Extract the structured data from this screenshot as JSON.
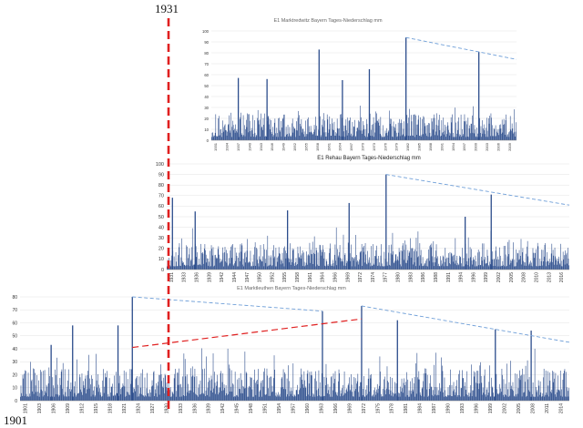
{
  "labels": {
    "year_top": "1931",
    "year_bottom": "1901"
  },
  "colors": {
    "bar": "#2b4c8c",
    "axis": "#888888",
    "grid": "#e3e3e3",
    "trend_blue": "#6f9fd8",
    "trend_red": "#e02020",
    "marker_red": "#e02020"
  },
  "chart_data": [
    {
      "type": "bar",
      "title": "E1 Marktredwitz Bayern Tages-Niederschlag mm",
      "xlabel": "",
      "ylabel": "",
      "ylim": [
        0,
        100
      ],
      "y_ticks": [
        0,
        10,
        20,
        30,
        40,
        50,
        60,
        70,
        80,
        90,
        100
      ],
      "x_range": [
        1931,
        2016
      ],
      "x_tick_labels": [
        "1931",
        "1934",
        "1937",
        "1940",
        "1943",
        "1946",
        "1949",
        "1952",
        "1955",
        "1958",
        "1961",
        "1964",
        "1967",
        "1970",
        "1973",
        "1976",
        "1979",
        "1982",
        "1985",
        "1988",
        "1991",
        "1994",
        "1997",
        "2000",
        "2003",
        "2006",
        "2009"
      ],
      "peaks": [
        {
          "year": 1985.2,
          "value": 94
        },
        {
          "year": 2005.5,
          "value": 81
        },
        {
          "year": 1961.0,
          "value": 83
        },
        {
          "year": 1975.0,
          "value": 65
        },
        {
          "year": 1946.5,
          "value": 56
        },
        {
          "year": 1938.5,
          "value": 57
        },
        {
          "year": 1967.5,
          "value": 55
        }
      ],
      "trend_line": {
        "from": {
          "year": 1985.2,
          "value": 94
        },
        "to": {
          "year": 2016,
          "value": 74
        }
      }
    },
    {
      "type": "bar",
      "title": "E1 Rehau Bayern Tages-Niederschlag mm",
      "xlabel": "",
      "ylabel": "",
      "ylim": [
        0,
        100
      ],
      "y_ticks": [
        0,
        10,
        20,
        30,
        40,
        50,
        60,
        70,
        80,
        90,
        100
      ],
      "x_range": [
        1931,
        2016
      ],
      "x_tick_labels": [
        "1931",
        "1933",
        "1936",
        "1939",
        "1942",
        "1944",
        "1947",
        "1950",
        "1952",
        "1955",
        "1958",
        "1961",
        "1964",
        "1966",
        "1969",
        "1972",
        "1974",
        "1977",
        "1980",
        "1983",
        "1986",
        "1988",
        "1991",
        "1994",
        "1996",
        "1999",
        "2002",
        "2005",
        "2008",
        "2010",
        "2013",
        "2016"
      ],
      "peaks": [
        {
          "year": 1977.3,
          "value": 90
        },
        {
          "year": 1999.5,
          "value": 71
        },
        {
          "year": 1932.2,
          "value": 68
        },
        {
          "year": 1969.5,
          "value": 63
        },
        {
          "year": 1956.5,
          "value": 56
        },
        {
          "year": 1937.0,
          "value": 55
        },
        {
          "year": 1994.0,
          "value": 50
        }
      ],
      "trend_line": {
        "from": {
          "year": 1977.3,
          "value": 90
        },
        "to": {
          "year": 2016,
          "value": 61
        }
      }
    },
    {
      "type": "bar",
      "title": "E1 Marktleuthen Bayern Tages-Niederschlag mm",
      "xlabel": "",
      "ylabel": "",
      "ylim": [
        0,
        80
      ],
      "y_ticks": [
        0,
        10,
        20,
        30,
        40,
        50,
        60,
        70,
        80
      ],
      "x_range": [
        1901,
        2016
      ],
      "x_tick_labels": [
        "1901",
        "1903",
        "1906",
        "1909",
        "1912",
        "1915",
        "1918",
        "1921",
        "1924",
        "1927",
        "1930",
        "1933",
        "1936",
        "1939",
        "1942",
        "1945",
        "1948",
        "1951",
        "1954",
        "1957",
        "1960",
        "1963",
        "1966",
        "1969",
        "1972",
        "1975",
        "1978",
        "1981",
        "1984",
        "1987",
        "1990",
        "1993",
        "1996",
        "1999",
        "2002",
        "2005",
        "2008",
        "2011",
        "2014"
      ],
      "peaks": [
        {
          "year": 1924.5,
          "value": 80
        },
        {
          "year": 1972.5,
          "value": 73
        },
        {
          "year": 1964.3,
          "value": 69
        },
        {
          "year": 2000.5,
          "value": 55
        },
        {
          "year": 2008.0,
          "value": 54
        },
        {
          "year": 1912.0,
          "value": 58
        },
        {
          "year": 1921.5,
          "value": 58
        },
        {
          "year": 1980.0,
          "value": 62
        },
        {
          "year": 1907.5,
          "value": 43
        }
      ],
      "trend_lines": [
        {
          "from": {
            "year": 1924.5,
            "value": 80
          },
          "to": {
            "year": 1964.3,
            "value": 69
          }
        },
        {
          "from": {
            "year": 1972.5,
            "value": 73
          },
          "to": {
            "year": 2016,
            "value": 45
          }
        }
      ],
      "red_trend_line": {
        "from": {
          "year": 1924.5,
          "value": 41
        },
        "to": {
          "year": 1972.5,
          "value": 63
        }
      }
    }
  ]
}
